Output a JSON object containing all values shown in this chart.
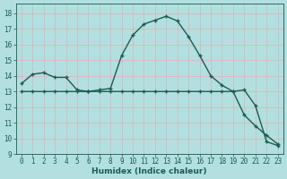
{
  "xlabel": "Humidex (Indice chaleur)",
  "ylabel": "",
  "bg_color": "#b2e0e0",
  "grid_color": "#d9b3b3",
  "line_color": "#1a5c52",
  "xlim": [
    -0.5,
    23.5
  ],
  "ylim": [
    9,
    18.6
  ],
  "xticks": [
    0,
    1,
    2,
    3,
    4,
    5,
    6,
    7,
    8,
    9,
    10,
    11,
    12,
    13,
    14,
    15,
    16,
    17,
    18,
    19,
    20,
    21,
    22,
    23
  ],
  "yticks": [
    9,
    10,
    11,
    12,
    13,
    14,
    15,
    16,
    17,
    18
  ],
  "line1_x": [
    0,
    1,
    2,
    3,
    4,
    5,
    6,
    7,
    8,
    9,
    10,
    11,
    12,
    13,
    14,
    15,
    16,
    17,
    18,
    19,
    20,
    21,
    22,
    23
  ],
  "line1_y": [
    13.5,
    14.1,
    14.2,
    13.9,
    13.9,
    13.1,
    13.0,
    13.1,
    13.2,
    15.3,
    16.6,
    17.3,
    17.55,
    17.8,
    17.5,
    16.5,
    15.3,
    14.0,
    13.4,
    13.0,
    13.1,
    12.1,
    9.8,
    9.55
  ],
  "line2_x": [
    0,
    1,
    2,
    3,
    4,
    5,
    6,
    7,
    8,
    9,
    10,
    11,
    12,
    13,
    14,
    15,
    16,
    17,
    18,
    19,
    20,
    21,
    22,
    23
  ],
  "line2_y": [
    13.0,
    13.0,
    13.0,
    13.0,
    13.0,
    13.0,
    13.0,
    13.0,
    13.0,
    13.0,
    13.0,
    13.0,
    13.0,
    13.0,
    13.0,
    13.0,
    13.0,
    13.0,
    13.0,
    13.0,
    11.5,
    10.8,
    10.2,
    9.65
  ]
}
